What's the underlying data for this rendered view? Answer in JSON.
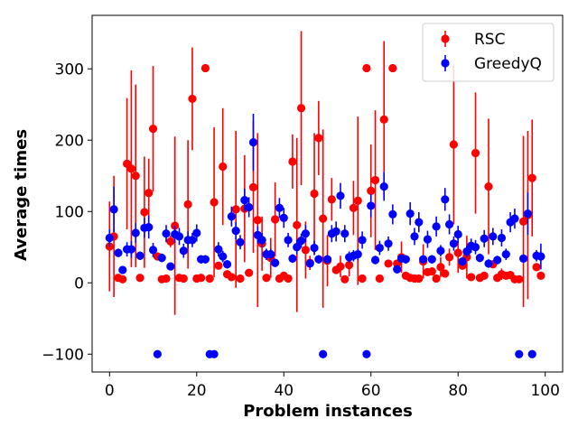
{
  "chart_data": {
    "type": "scatter",
    "title": "",
    "xlabel": "Problem instances",
    "ylabel": "Average times",
    "xlim": [
      -4,
      104
    ],
    "ylim": [
      -125,
      375
    ],
    "xticks": [
      0,
      20,
      40,
      60,
      80,
      100
    ],
    "yticks": [
      -100,
      0,
      100,
      200,
      300
    ],
    "grid": false,
    "legend_position": "top-right",
    "error_bars": true,
    "series": [
      {
        "name": "RSC",
        "color": "#ff0000",
        "points": [
          {
            "x": 0,
            "y": 51,
            "err": 63
          },
          {
            "x": 1,
            "y": 65,
            "err": 85
          },
          {
            "x": 2,
            "y": 7,
            "err": 5
          },
          {
            "x": 3,
            "y": 5,
            "err": 4
          },
          {
            "x": 4,
            "y": 167,
            "err": 92
          },
          {
            "x": 5,
            "y": 160,
            "err": 138
          },
          {
            "x": 6,
            "y": 150,
            "err": 128
          },
          {
            "x": 7,
            "y": 7,
            "err": 5
          },
          {
            "x": 8,
            "y": 99,
            "err": 78
          },
          {
            "x": 9,
            "y": 126,
            "err": 48
          },
          {
            "x": 10,
            "y": 216,
            "err": 88
          },
          {
            "x": 11,
            "y": 37,
            "err": 4
          },
          {
            "x": 12,
            "y": 5,
            "err": 3
          },
          {
            "x": 13,
            "y": 6,
            "err": 3
          },
          {
            "x": 14,
            "y": 58,
            "err": 8
          },
          {
            "x": 15,
            "y": 80,
            "err": 125
          },
          {
            "x": 16,
            "y": 7,
            "err": 3
          },
          {
            "x": 17,
            "y": 6,
            "err": 3
          },
          {
            "x": 18,
            "y": 110,
            "err": 90
          },
          {
            "x": 19,
            "y": 258,
            "err": 72
          },
          {
            "x": 20,
            "y": 6,
            "err": 3
          },
          {
            "x": 21,
            "y": 7,
            "err": 3
          },
          {
            "x": 22,
            "y": 301,
            "err": 0
          },
          {
            "x": 23,
            "y": 6,
            "err": 3
          },
          {
            "x": 24,
            "y": 113,
            "err": 105
          },
          {
            "x": 25,
            "y": 24,
            "err": 4
          },
          {
            "x": 26,
            "y": 163,
            "err": 82
          },
          {
            "x": 27,
            "y": 12,
            "err": 3
          },
          {
            "x": 28,
            "y": 8,
            "err": 3
          },
          {
            "x": 29,
            "y": 103,
            "err": 110
          },
          {
            "x": 30,
            "y": 6,
            "err": 3
          },
          {
            "x": 31,
            "y": 104,
            "err": 75
          },
          {
            "x": 32,
            "y": 14,
            "err": 4
          },
          {
            "x": 33,
            "y": 134,
            "err": 92
          },
          {
            "x": 34,
            "y": 88,
            "err": 122
          },
          {
            "x": 35,
            "y": 55,
            "err": 38
          },
          {
            "x": 36,
            "y": 7,
            "err": 3
          },
          {
            "x": 37,
            "y": 35,
            "err": 28
          },
          {
            "x": 38,
            "y": 89,
            "err": 52
          },
          {
            "x": 39,
            "y": 6,
            "err": 3
          },
          {
            "x": 40,
            "y": 10,
            "err": 4
          },
          {
            "x": 41,
            "y": 6,
            "err": 3
          },
          {
            "x": 42,
            "y": 170,
            "err": 38
          },
          {
            "x": 43,
            "y": 81,
            "err": 122
          },
          {
            "x": 44,
            "y": 245,
            "err": 108
          },
          {
            "x": 45,
            "y": 46,
            "err": 40
          },
          {
            "x": 46,
            "y": 28,
            "err": 10
          },
          {
            "x": 47,
            "y": 125,
            "err": 85
          },
          {
            "x": 48,
            "y": 203,
            "err": 52
          },
          {
            "x": 49,
            "y": 90,
            "err": 125
          },
          {
            "x": 50,
            "y": 31,
            "err": 36
          },
          {
            "x": 51,
            "y": 117,
            "err": 30
          },
          {
            "x": 52,
            "y": 18,
            "err": 4
          },
          {
            "x": 53,
            "y": 23,
            "err": 15
          },
          {
            "x": 54,
            "y": 5,
            "err": 3
          },
          {
            "x": 55,
            "y": 25,
            "err": 16
          },
          {
            "x": 56,
            "y": 105,
            "err": 38
          },
          {
            "x": 57,
            "y": 115,
            "err": 118
          },
          {
            "x": 58,
            "y": 6,
            "err": 3
          },
          {
            "x": 59,
            "y": 301,
            "err": 0
          },
          {
            "x": 60,
            "y": 129,
            "err": 65
          },
          {
            "x": 61,
            "y": 144,
            "err": 98
          },
          {
            "x": 62,
            "y": 6,
            "err": 3
          },
          {
            "x": 63,
            "y": 229,
            "err": 110
          },
          {
            "x": 64,
            "y": 27,
            "err": 4
          },
          {
            "x": 65,
            "y": 301,
            "err": 0
          },
          {
            "x": 66,
            "y": 27,
            "err": 3
          },
          {
            "x": 67,
            "y": 36,
            "err": 22
          },
          {
            "x": 68,
            "y": 10,
            "err": 3
          },
          {
            "x": 69,
            "y": 7,
            "err": 3
          },
          {
            "x": 70,
            "y": 6,
            "err": 3
          },
          {
            "x": 71,
            "y": 6,
            "err": 3
          },
          {
            "x": 72,
            "y": 30,
            "err": 24
          },
          {
            "x": 73,
            "y": 15,
            "err": 4
          },
          {
            "x": 74,
            "y": 16,
            "err": 4
          },
          {
            "x": 75,
            "y": 6,
            "err": 3
          },
          {
            "x": 76,
            "y": 22,
            "err": 14
          },
          {
            "x": 77,
            "y": 13,
            "err": 4
          },
          {
            "x": 78,
            "y": 36,
            "err": 12
          },
          {
            "x": 79,
            "y": 194,
            "err": 112
          },
          {
            "x": 80,
            "y": 42,
            "err": 28
          },
          {
            "x": 81,
            "y": 24,
            "err": 4
          },
          {
            "x": 82,
            "y": 36,
            "err": 30
          },
          {
            "x": 83,
            "y": 8,
            "err": 3
          },
          {
            "x": 84,
            "y": 182,
            "err": 85
          },
          {
            "x": 85,
            "y": 7,
            "err": 3
          },
          {
            "x": 86,
            "y": 10,
            "err": 3
          },
          {
            "x": 87,
            "y": 135,
            "err": 95
          },
          {
            "x": 88,
            "y": 26,
            "err": 4
          },
          {
            "x": 89,
            "y": 7,
            "err": 3
          },
          {
            "x": 90,
            "y": 12,
            "err": 8
          },
          {
            "x": 91,
            "y": 10,
            "err": 3
          },
          {
            "x": 92,
            "y": 11,
            "err": 3
          },
          {
            "x": 93,
            "y": 5,
            "err": 3
          },
          {
            "x": 94,
            "y": 5,
            "err": 3
          },
          {
            "x": 95,
            "y": 86,
            "err": 120
          },
          {
            "x": 96,
            "y": 95,
            "err": 118
          },
          {
            "x": 97,
            "y": 147,
            "err": 82
          },
          {
            "x": 98,
            "y": 22,
            "err": 4
          },
          {
            "x": 99,
            "y": 10,
            "err": 3
          }
        ]
      },
      {
        "name": "GreedyQ",
        "color": "#0000ff",
        "points": [
          {
            "x": 0,
            "y": 63,
            "err": 12
          },
          {
            "x": 1,
            "y": 103,
            "err": 32
          },
          {
            "x": 2,
            "y": 42,
            "err": 6
          },
          {
            "x": 3,
            "y": 18,
            "err": 4
          },
          {
            "x": 4,
            "y": 47,
            "err": 10
          },
          {
            "x": 5,
            "y": 47,
            "err": 12
          },
          {
            "x": 6,
            "y": 70,
            "err": 14
          },
          {
            "x": 7,
            "y": 38,
            "err": 6
          },
          {
            "x": 8,
            "y": 77,
            "err": 14
          },
          {
            "x": 9,
            "y": 78,
            "err": 16
          },
          {
            "x": 10,
            "y": 46,
            "err": 10
          },
          {
            "x": 11,
            "y": -100,
            "err": 0
          },
          {
            "x": 12,
            "y": 35,
            "err": 6
          },
          {
            "x": 13,
            "y": 69,
            "err": 12
          },
          {
            "x": 14,
            "y": 23,
            "err": 4
          },
          {
            "x": 15,
            "y": 68,
            "err": 12
          },
          {
            "x": 16,
            "y": 65,
            "err": 12
          },
          {
            "x": 17,
            "y": 45,
            "err": 10
          },
          {
            "x": 18,
            "y": 60,
            "err": 12
          },
          {
            "x": 19,
            "y": 60,
            "err": 10
          },
          {
            "x": 20,
            "y": 70,
            "err": 12
          },
          {
            "x": 21,
            "y": 33,
            "err": 6
          },
          {
            "x": 22,
            "y": 33,
            "err": 6
          },
          {
            "x": 23,
            "y": -100,
            "err": 0
          },
          {
            "x": 24,
            "y": -100,
            "err": 0
          },
          {
            "x": 25,
            "y": 47,
            "err": 10
          },
          {
            "x": 26,
            "y": 37,
            "err": 8
          },
          {
            "x": 27,
            "y": 26,
            "err": 6
          },
          {
            "x": 28,
            "y": 93,
            "err": 14
          },
          {
            "x": 29,
            "y": 73,
            "err": 12
          },
          {
            "x": 30,
            "y": 57,
            "err": 10
          },
          {
            "x": 31,
            "y": 116,
            "err": 16
          },
          {
            "x": 32,
            "y": 106,
            "err": 14
          },
          {
            "x": 33,
            "y": 197,
            "err": 40
          },
          {
            "x": 34,
            "y": 67,
            "err": 12
          },
          {
            "x": 35,
            "y": 60,
            "err": 10
          },
          {
            "x": 36,
            "y": 40,
            "err": 8
          },
          {
            "x": 37,
            "y": 40,
            "err": 8
          },
          {
            "x": 38,
            "y": 28,
            "err": 6
          },
          {
            "x": 39,
            "y": 105,
            "err": 14
          },
          {
            "x": 40,
            "y": 91,
            "err": 14
          },
          {
            "x": 41,
            "y": 60,
            "err": 10
          },
          {
            "x": 42,
            "y": 34,
            "err": 6
          },
          {
            "x": 43,
            "y": 50,
            "err": 10
          },
          {
            "x": 44,
            "y": 59,
            "err": 10
          },
          {
            "x": 45,
            "y": 69,
            "err": 12
          },
          {
            "x": 46,
            "y": 27,
            "err": 6
          },
          {
            "x": 47,
            "y": 49,
            "err": 10
          },
          {
            "x": 48,
            "y": 33,
            "err": 6
          },
          {
            "x": 49,
            "y": -100,
            "err": 0
          },
          {
            "x": 50,
            "y": 33,
            "err": 6
          },
          {
            "x": 51,
            "y": 69,
            "err": 12
          },
          {
            "x": 52,
            "y": 72,
            "err": 14
          },
          {
            "x": 53,
            "y": 122,
            "err": 18
          },
          {
            "x": 54,
            "y": 69,
            "err": 12
          },
          {
            "x": 55,
            "y": 36,
            "err": 8
          },
          {
            "x": 56,
            "y": 38,
            "err": 8
          },
          {
            "x": 57,
            "y": 40,
            "err": 8
          },
          {
            "x": 58,
            "y": 60,
            "err": 12
          },
          {
            "x": 59,
            "y": -100,
            "err": 0
          },
          {
            "x": 60,
            "y": 108,
            "err": 16
          },
          {
            "x": 61,
            "y": 32,
            "err": 6
          },
          {
            "x": 62,
            "y": 49,
            "err": 10
          },
          {
            "x": 63,
            "y": 135,
            "err": 20
          },
          {
            "x": 64,
            "y": 55,
            "err": 10
          },
          {
            "x": 65,
            "y": 96,
            "err": 14
          },
          {
            "x": 66,
            "y": 19,
            "err": 6
          },
          {
            "x": 67,
            "y": 34,
            "err": 6
          },
          {
            "x": 68,
            "y": 33,
            "err": 6
          },
          {
            "x": 69,
            "y": 97,
            "err": 16
          },
          {
            "x": 70,
            "y": 65,
            "err": 12
          },
          {
            "x": 71,
            "y": 85,
            "err": 14
          },
          {
            "x": 72,
            "y": 33,
            "err": 6
          },
          {
            "x": 73,
            "y": 61,
            "err": 12
          },
          {
            "x": 74,
            "y": 33,
            "err": 6
          },
          {
            "x": 75,
            "y": 79,
            "err": 14
          },
          {
            "x": 76,
            "y": 45,
            "err": 8
          },
          {
            "x": 77,
            "y": 117,
            "err": 16
          },
          {
            "x": 78,
            "y": 82,
            "err": 14
          },
          {
            "x": 79,
            "y": 55,
            "err": 10
          },
          {
            "x": 80,
            "y": 68,
            "err": 12
          },
          {
            "x": 81,
            "y": 30,
            "err": 6
          },
          {
            "x": 82,
            "y": 44,
            "err": 8
          },
          {
            "x": 83,
            "y": 52,
            "err": 10
          },
          {
            "x": 84,
            "y": 50,
            "err": 10
          },
          {
            "x": 85,
            "y": 35,
            "err": 6
          },
          {
            "x": 86,
            "y": 62,
            "err": 12
          },
          {
            "x": 87,
            "y": 27,
            "err": 6
          },
          {
            "x": 88,
            "y": 65,
            "err": 12
          },
          {
            "x": 89,
            "y": 32,
            "err": 6
          },
          {
            "x": 90,
            "y": 63,
            "err": 12
          },
          {
            "x": 91,
            "y": 40,
            "err": 8
          },
          {
            "x": 92,
            "y": 85,
            "err": 14
          },
          {
            "x": 93,
            "y": 90,
            "err": 14
          },
          {
            "x": 94,
            "y": -100,
            "err": 0
          },
          {
            "x": 95,
            "y": 34,
            "err": 6
          },
          {
            "x": 96,
            "y": 97,
            "err": 30
          },
          {
            "x": 97,
            "y": -100,
            "err": 0
          },
          {
            "x": 98,
            "y": 38,
            "err": 8
          },
          {
            "x": 99,
            "y": 37,
            "err": 18
          }
        ]
      }
    ]
  }
}
